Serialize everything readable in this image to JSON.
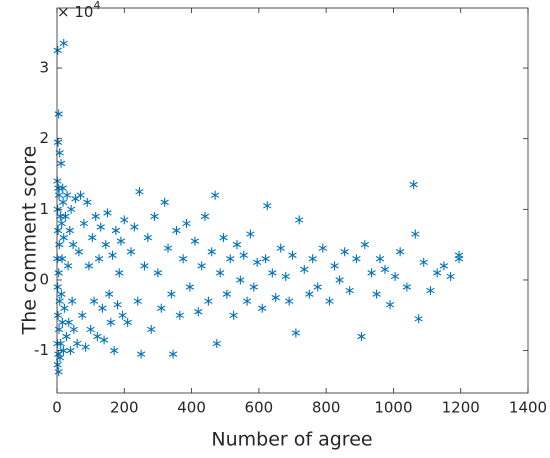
{
  "chart_data": {
    "type": "scatter",
    "xlabel": "Number of agree",
    "ylabel": "The comment score",
    "y_multiplier": "× 10",
    "y_exponent": "4",
    "color": "#0072bd",
    "marker": "asterisk",
    "box": true,
    "xlim": [
      0,
      1400
    ],
    "xticks": [
      0,
      200,
      400,
      600,
      800,
      1000,
      1200,
      1400
    ],
    "ylim": [
      -1.6,
      3.85
    ],
    "yticks": [
      -1,
      0,
      1,
      2,
      3
    ],
    "x": [
      2,
      20,
      5,
      3,
      8,
      12,
      1,
      4,
      6,
      2,
      10,
      3,
      7,
      1,
      5,
      2,
      8,
      3,
      6,
      1,
      4,
      2,
      5,
      9,
      14,
      16,
      18,
      11,
      15,
      13,
      20,
      19,
      17,
      22,
      25,
      28,
      30,
      33,
      35,
      38,
      40,
      42,
      45,
      48,
      50,
      55,
      60,
      65,
      70,
      75,
      80,
      85,
      90,
      95,
      100,
      105,
      110,
      115,
      120,
      125,
      130,
      135,
      140,
      145,
      150,
      155,
      160,
      165,
      170,
      175,
      180,
      185,
      190,
      195,
      200,
      210,
      220,
      230,
      240,
      245,
      250,
      260,
      270,
      280,
      290,
      300,
      310,
      320,
      330,
      340,
      345,
      355,
      365,
      375,
      385,
      395,
      410,
      420,
      430,
      440,
      450,
      460,
      470,
      475,
      485,
      495,
      505,
      515,
      525,
      535,
      545,
      555,
      565,
      575,
      585,
      595,
      610,
      620,
      625,
      640,
      650,
      665,
      680,
      690,
      700,
      710,
      720,
      735,
      750,
      760,
      775,
      790,
      810,
      825,
      840,
      855,
      870,
      890,
      905,
      915,
      935,
      950,
      960,
      975,
      990,
      1005,
      1020,
      1040,
      1060,
      1065,
      1075,
      1090,
      1110,
      1130,
      1150,
      1170,
      1195,
      1195
    ],
    "y": [
      3.25,
      3.35,
      2.35,
      1.95,
      1.8,
      1.65,
      1.4,
      1.3,
      1.2,
      1.0,
      0.9,
      0.7,
      0.5,
      0.3,
      0.1,
      -0.1,
      -0.3,
      -0.5,
      -0.7,
      -0.9,
      -1.05,
      -1.2,
      -1.3,
      -1.1,
      0.8,
      -0.6,
      1.1,
      -0.9,
      0.3,
      -0.2,
      0.6,
      -1.0,
      1.3,
      -0.4,
      0.9,
      -0.8,
      1.2,
      0.2,
      -0.6,
      0.7,
      -1.0,
      1.0,
      -0.3,
      0.5,
      -0.7,
      1.15,
      -0.9,
      0.4,
      1.2,
      -0.5,
      0.8,
      -0.95,
      1.1,
      0.2,
      -0.7,
      0.6,
      -0.3,
      0.9,
      -0.8,
      0.3,
      0.75,
      -0.4,
      -0.85,
      0.5,
      0.95,
      -0.2,
      -0.6,
      0.35,
      -1.0,
      0.7,
      -0.35,
      0.1,
      0.55,
      -0.5,
      0.85,
      -0.6,
      0.4,
      0.75,
      -0.3,
      1.25,
      -1.05,
      0.2,
      0.6,
      -0.7,
      0.9,
      0.1,
      -0.4,
      1.1,
      0.45,
      -0.2,
      -1.05,
      0.7,
      -0.5,
      0.3,
      0.8,
      -0.1,
      0.55,
      -0.45,
      0.2,
      0.9,
      -0.3,
      0.4,
      1.2,
      -0.9,
      0.1,
      0.6,
      -0.2,
      0.3,
      -0.5,
      0.5,
      0.0,
      0.35,
      -0.3,
      0.65,
      -0.1,
      0.25,
      -0.4,
      0.3,
      1.05,
      0.1,
      -0.25,
      0.45,
      0.05,
      -0.3,
      0.35,
      -0.75,
      0.85,
      0.15,
      -0.2,
      0.3,
      -0.1,
      0.45,
      -0.3,
      0.2,
      0.0,
      0.4,
      -0.15,
      0.3,
      -0.8,
      0.5,
      0.1,
      -0.2,
      0.3,
      0.15,
      -0.35,
      0.05,
      0.4,
      -0.1,
      1.35,
      0.65,
      -0.55,
      0.25,
      -0.15,
      0.1,
      0.2,
      0.05,
      0.3,
      0.35
    ]
  }
}
